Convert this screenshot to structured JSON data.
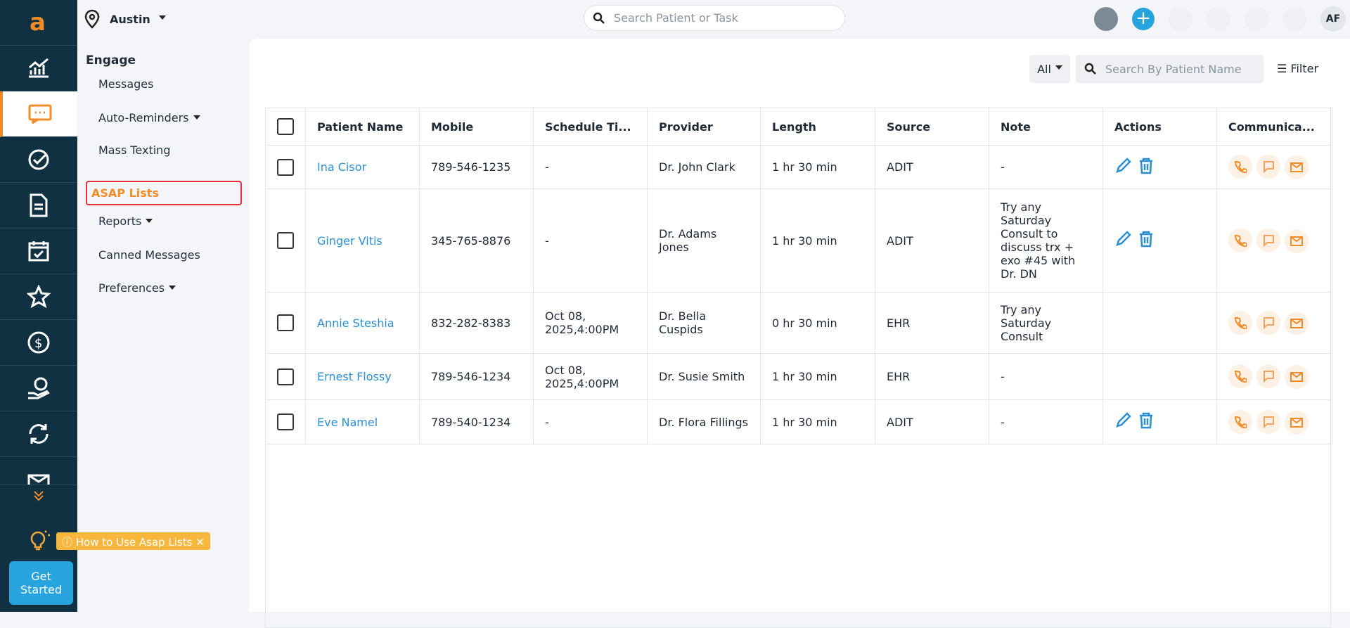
{
  "header": {
    "location": "Austin",
    "search": "Search Patient or Task",
    "avatar": "AF"
  },
  "menu": {
    "title": "Engage",
    "items": [
      {
        "label": "Messages",
        "dropdown": false
      },
      {
        "label": "Auto-Reminders",
        "dropdown": true
      },
      {
        "label": "Mass Texting",
        "dropdown": false
      },
      {
        "label": "ASAP Lists",
        "dropdown": false,
        "active": true
      },
      {
        "label": "Reports",
        "dropdown": true
      },
      {
        "label": "Canned Messages",
        "dropdown": false
      },
      {
        "label": "Preferences",
        "dropdown": true
      }
    ]
  },
  "sidebar": {
    "tip": "How to Use Asap Lists",
    "button": "Get Started"
  },
  "toolbar": {
    "filter_select": "All",
    "search": "Search By Patient Name",
    "filter": "Filter"
  },
  "table": {
    "columns": [
      "Patient Name",
      "Mobile",
      "Schedule Ti...",
      "Provider",
      "Length",
      "Source",
      "Note",
      "Actions",
      "Communica..."
    ],
    "rows": [
      {
        "cells": [
          "Ina Cisor",
          "789-546-1235",
          "-",
          "Dr. John Clark",
          "1 hr 30 min",
          "ADIT",
          "-"
        ],
        "editable": true
      },
      {
        "cells": [
          "Ginger Vitis",
          "345-765-8876",
          "-",
          "Dr. Adams Jones",
          "1 hr 30 min",
          "ADIT",
          "Try any Saturday Consult to discuss trx + exo #45 with Dr. DN"
        ],
        "editable": true
      },
      {
        "cells": [
          "Annie Steshia",
          "832-282-8383",
          "Oct 08, 2025,4:00PM",
          "Dr. Bella Cuspids",
          "0 hr 30 min",
          "EHR",
          "Try any Saturday Consult"
        ],
        "editable": false
      },
      {
        "cells": [
          "Ernest Flossy",
          "789-546-1234",
          "Oct 08, 2025,4:00PM",
          "Dr. Susie Smith",
          "1 hr 30 min",
          "EHR",
          "-"
        ],
        "editable": false
      },
      {
        "cells": [
          "Eve Namel",
          "789-540-1234",
          "-",
          "Dr. Flora Fillings",
          "1 hr 30 min",
          "ADIT",
          "-"
        ],
        "editable": true
      }
    ]
  }
}
